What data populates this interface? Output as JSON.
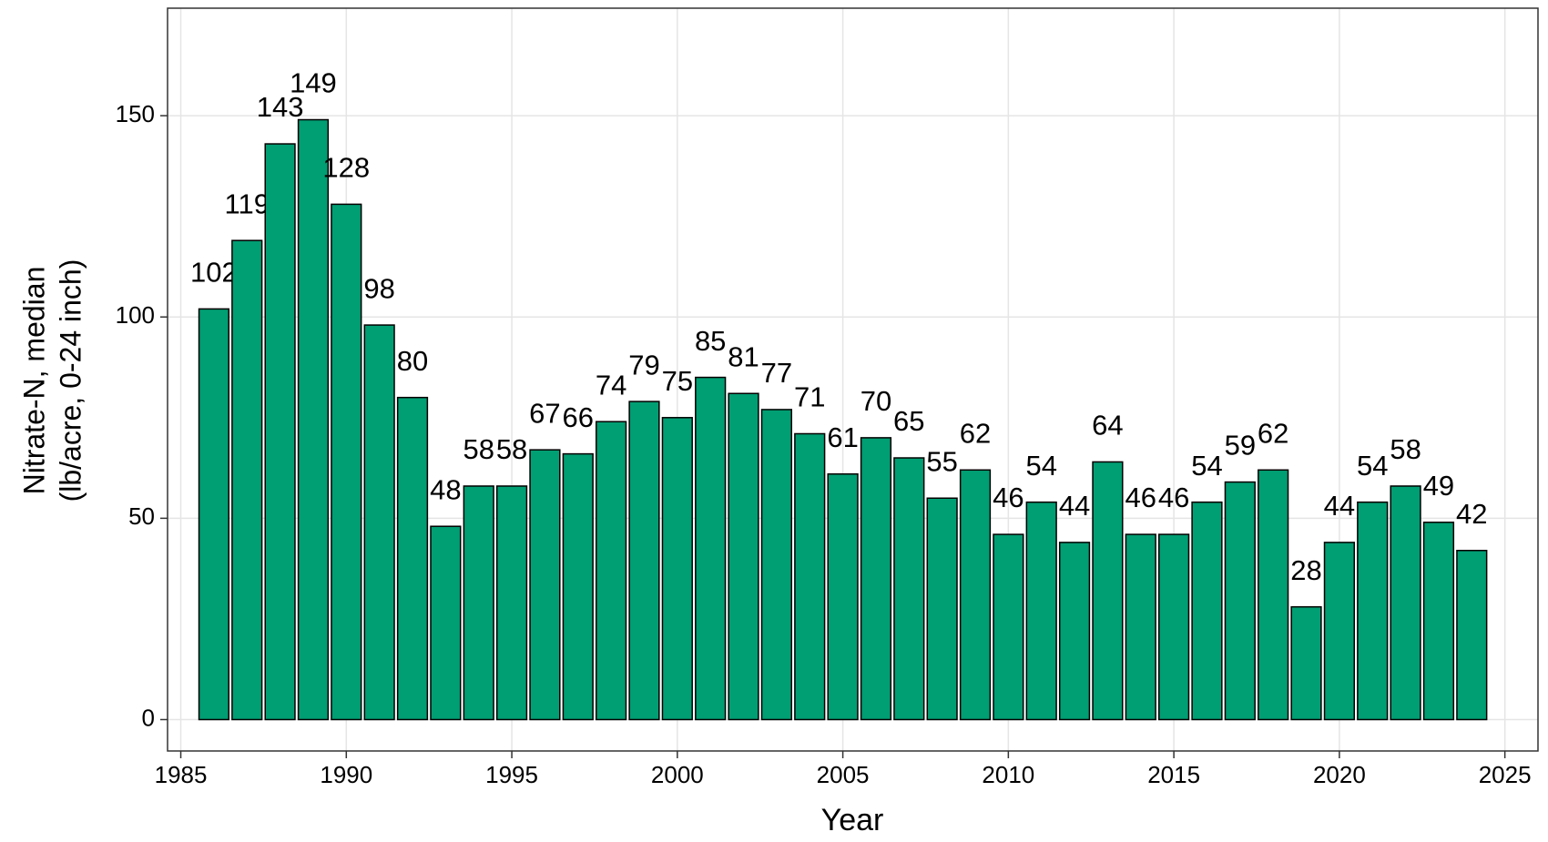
{
  "chart_data": {
    "type": "bar",
    "xlabel": "Year",
    "ylabel": [
      "Nitrate-N, median",
      "(lb/acre, 0-24 inch)"
    ],
    "x": [
      1986,
      1987,
      1988,
      1989,
      1990,
      1991,
      1992,
      1993,
      1994,
      1995,
      1996,
      1997,
      1998,
      1999,
      2000,
      2001,
      2002,
      2003,
      2004,
      2005,
      2006,
      2007,
      2008,
      2009,
      2010,
      2011,
      2012,
      2013,
      2014,
      2015,
      2016,
      2017,
      2018,
      2019,
      2020,
      2021,
      2022,
      2023,
      2024
    ],
    "values": [
      102,
      119,
      143,
      149,
      128,
      98,
      80,
      48,
      58,
      58,
      67,
      66,
      74,
      79,
      75,
      85,
      81,
      77,
      71,
      61,
      70,
      65,
      55,
      62,
      46,
      54,
      44,
      64,
      46,
      46,
      54,
      59,
      62,
      28,
      44,
      54,
      58,
      49,
      42
    ],
    "color": "#009E73",
    "xlim": [
      1984.6,
      2026.0
    ],
    "xticks": [
      1985,
      1990,
      1995,
      2000,
      2005,
      2010,
      2015,
      2020,
      2025
    ],
    "ylim": [
      -7.8,
      176.7
    ],
    "yticks": [
      0,
      50,
      100,
      150
    ],
    "grid": true
  }
}
